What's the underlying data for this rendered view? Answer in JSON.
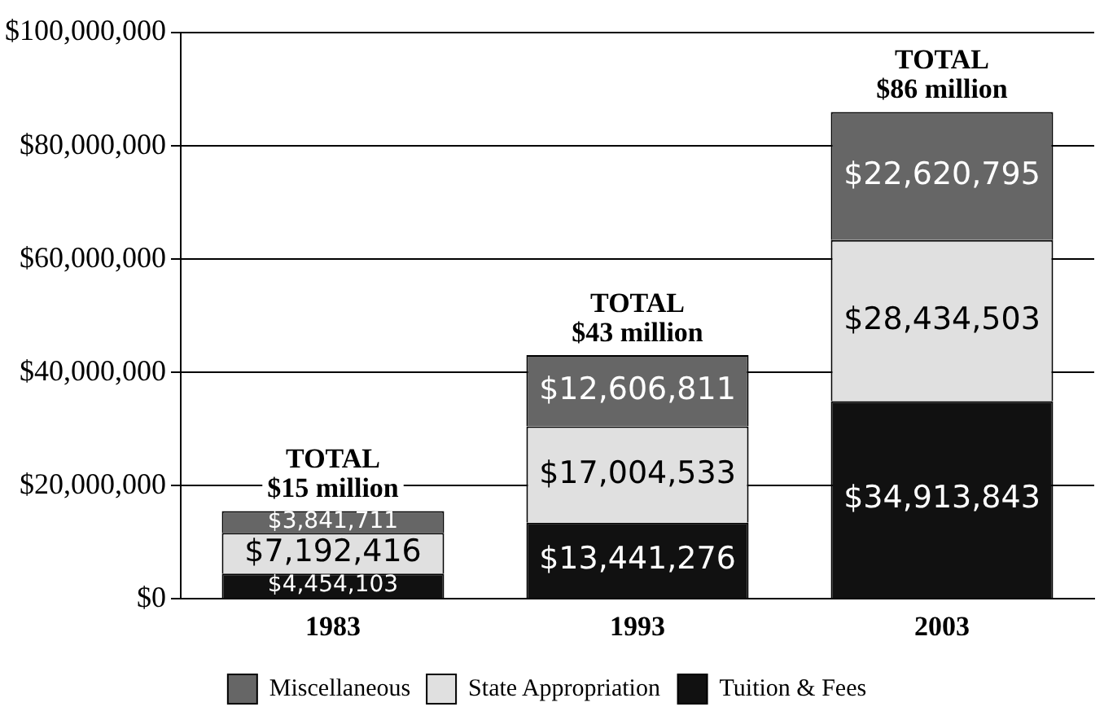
{
  "chart_data": {
    "type": "bar",
    "stacked": true,
    "categories": [
      "1983",
      "1993",
      "2003"
    ],
    "series": [
      {
        "name": "Tuition & Fees",
        "color": "#111111",
        "values": [
          4454103,
          13441276,
          34913843
        ],
        "value_labels": [
          "$4,454,103",
          "$13,441,276",
          "$34,913,843"
        ]
      },
      {
        "name": "State Appropriation",
        "color": "#e0e0e0",
        "values": [
          7192416,
          17004533,
          28434503
        ],
        "value_labels": [
          "$7,192,416",
          "$17,004,533",
          "$28,434,503"
        ]
      },
      {
        "name": "Miscellaneous",
        "color": "#666666",
        "values": [
          3841711,
          12606811,
          22620795
        ],
        "value_labels": [
          "$3,841,711",
          "$12,606,811",
          "$22,620,795"
        ]
      }
    ],
    "totals": [
      "TOTAL\n$15 million",
      "TOTAL\n$43 million",
      "TOTAL\n$86 million"
    ],
    "ylim": [
      0,
      100000000
    ],
    "yticks": [
      {
        "value": 0,
        "label": "$0"
      },
      {
        "value": 20000000,
        "label": "$20,000,000"
      },
      {
        "value": 40000000,
        "label": "$40,000,000"
      },
      {
        "value": 60000000,
        "label": "$60,000,000"
      },
      {
        "value": 80000000,
        "label": "$80,000,000"
      },
      {
        "value": 100000000,
        "label": "$100,000,000"
      }
    ],
    "grid": "y",
    "legend": "bottom"
  }
}
